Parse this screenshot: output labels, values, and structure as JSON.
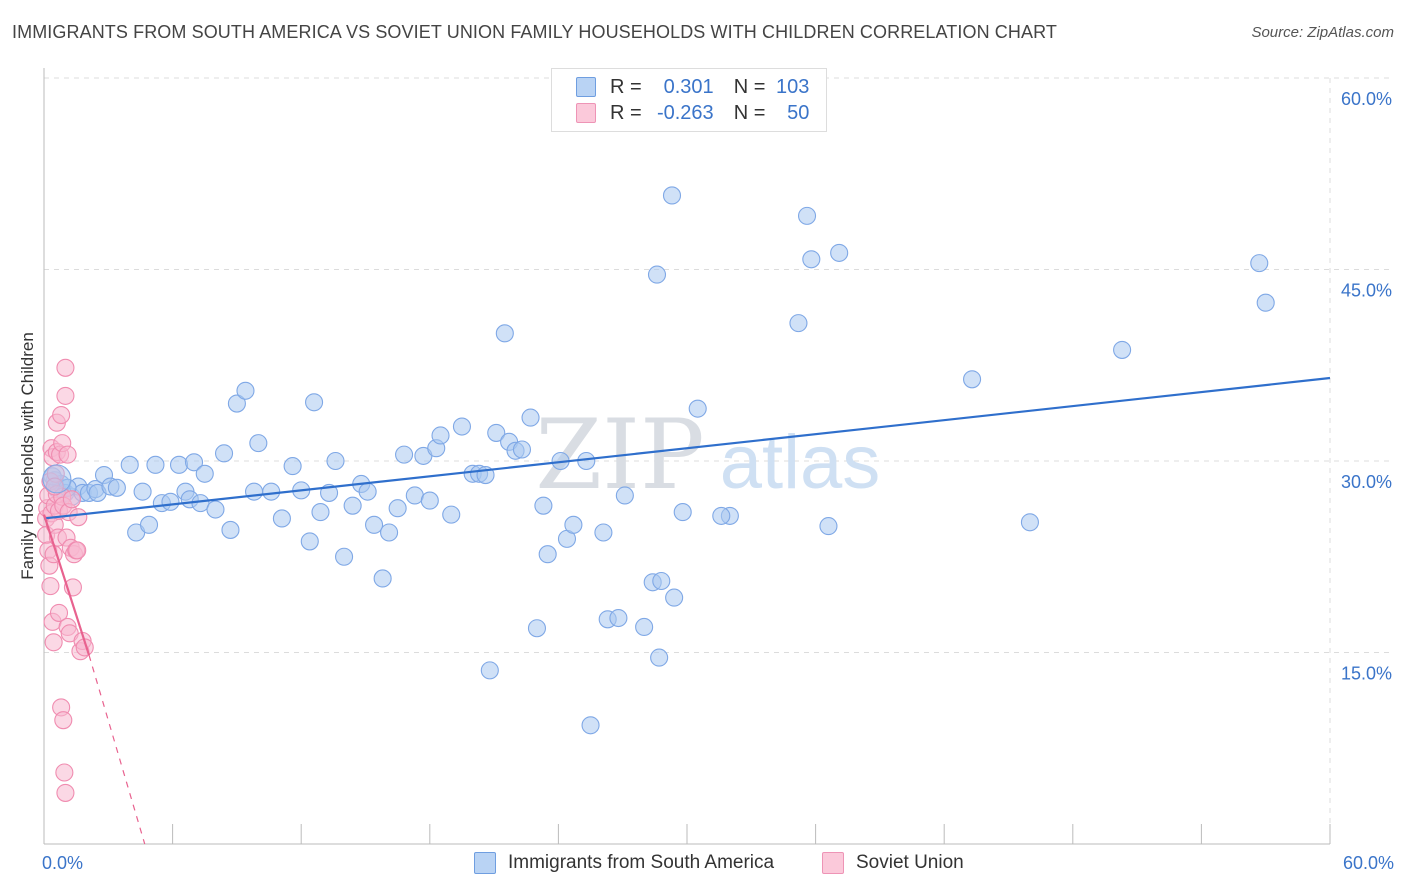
{
  "chart_data": {
    "type": "scatter",
    "title": "IMMIGRANTS FROM SOUTH AMERICA VS SOVIET UNION FAMILY HOUSEHOLDS WITH CHILDREN CORRELATION CHART",
    "source": "Source: ZipAtlas.com",
    "ylabel": "Family Households with Children",
    "xlim": [
      0,
      60
    ],
    "ylim": [
      0,
      60
    ],
    "x_tick_labels": {
      "left": "0.0%",
      "right": "60.0%"
    },
    "y_tick_labels": [
      "15.0%",
      "30.0%",
      "45.0%",
      "60.0%"
    ],
    "y_ticks": [
      15,
      30,
      45,
      60
    ],
    "watermark": {
      "zip": "ZIP",
      "atlas": "atlas"
    },
    "legend": {
      "rows": [
        {
          "r_label": "R =",
          "r_value": "0.301",
          "n_label": "N =",
          "n_value": "103"
        },
        {
          "r_label": "R =",
          "r_value": "-0.263",
          "n_label": "N =",
          "n_value": "50"
        }
      ]
    },
    "series": [
      {
        "name": "Immigrants from South America",
        "color": "#7fa8e6",
        "fill": "#aac8f0",
        "line_color": "#2f6fcc",
        "trend": {
          "x0": 0,
          "y0": 25.5,
          "x1": 60,
          "y1": 36.5
        },
        "points": [
          [
            0.5,
            28.5
          ],
          [
            0.6,
            27.8
          ],
          [
            0.8,
            28.2
          ],
          [
            1.0,
            27.5
          ],
          [
            1.3,
            27.2
          ],
          [
            1.6,
            28.0
          ],
          [
            1.8,
            27.5
          ],
          [
            2.1,
            27.5
          ],
          [
            2.4,
            27.8
          ],
          [
            2.5,
            27.5
          ],
          [
            2.8,
            28.9
          ],
          [
            3.1,
            28.0
          ],
          [
            3.4,
            27.9
          ],
          [
            4.0,
            29.7
          ],
          [
            4.3,
            24.4
          ],
          [
            4.6,
            27.6
          ],
          [
            4.9,
            25.0
          ],
          [
            5.2,
            29.7
          ],
          [
            5.5,
            26.7
          ],
          [
            5.9,
            26.8
          ],
          [
            6.3,
            29.7
          ],
          [
            6.6,
            27.6
          ],
          [
            6.8,
            27.0
          ],
          [
            7.0,
            29.9
          ],
          [
            7.3,
            26.7
          ],
          [
            7.5,
            29.0
          ],
          [
            8.0,
            26.2
          ],
          [
            8.4,
            30.6
          ],
          [
            8.7,
            24.6
          ],
          [
            9.0,
            34.5
          ],
          [
            9.4,
            35.5
          ],
          [
            9.8,
            27.6
          ],
          [
            10.0,
            31.4
          ],
          [
            10.6,
            27.6
          ],
          [
            11.1,
            25.5
          ],
          [
            11.6,
            29.6
          ],
          [
            12.0,
            27.7
          ],
          [
            12.4,
            23.7
          ],
          [
            12.6,
            34.6
          ],
          [
            12.9,
            26.0
          ],
          [
            13.3,
            27.5
          ],
          [
            13.6,
            30.0
          ],
          [
            14.0,
            22.5
          ],
          [
            14.4,
            26.5
          ],
          [
            14.8,
            28.2
          ],
          [
            15.1,
            27.6
          ],
          [
            15.4,
            25.0
          ],
          [
            15.8,
            20.8
          ],
          [
            16.1,
            24.4
          ],
          [
            16.5,
            26.3
          ],
          [
            16.8,
            30.5
          ],
          [
            17.3,
            27.3
          ],
          [
            17.7,
            30.4
          ],
          [
            18.0,
            26.9
          ],
          [
            18.3,
            31.0
          ],
          [
            18.5,
            32.0
          ],
          [
            19.0,
            25.8
          ],
          [
            19.5,
            32.7
          ],
          [
            20.0,
            29.0
          ],
          [
            20.3,
            29.0
          ],
          [
            20.6,
            28.9
          ],
          [
            21.1,
            32.2
          ],
          [
            21.5,
            40.0
          ],
          [
            21.7,
            31.5
          ],
          [
            22.0,
            30.8
          ],
          [
            22.3,
            30.9
          ],
          [
            22.7,
            33.4
          ],
          [
            23.0,
            16.9
          ],
          [
            23.3,
            26.5
          ],
          [
            23.5,
            22.7
          ],
          [
            24.1,
            30.0
          ],
          [
            24.4,
            23.9
          ],
          [
            24.7,
            25.0
          ],
          [
            25.3,
            30.0
          ],
          [
            25.5,
            9.3
          ],
          [
            26.1,
            24.4
          ],
          [
            26.3,
            17.6
          ],
          [
            26.8,
            17.7
          ],
          [
            27.1,
            27.3
          ],
          [
            28.0,
            17.0
          ],
          [
            28.4,
            20.5
          ],
          [
            28.6,
            44.6
          ],
          [
            28.7,
            14.6
          ],
          [
            29.3,
            50.8
          ],
          [
            29.4,
            19.3
          ],
          [
            29.8,
            26.0
          ],
          [
            30.5,
            34.1
          ],
          [
            32.0,
            25.7
          ],
          [
            35.2,
            40.8
          ],
          [
            35.6,
            49.2
          ],
          [
            35.8,
            45.8
          ],
          [
            36.6,
            24.9
          ],
          [
            37.1,
            46.3
          ],
          [
            43.3,
            36.4
          ],
          [
            46.0,
            25.2
          ],
          [
            50.3,
            38.7
          ],
          [
            56.7,
            45.5
          ],
          [
            57.0,
            42.4
          ],
          [
            0.4,
            28.8
          ],
          [
            1.1,
            27.9
          ],
          [
            20.8,
            13.6
          ],
          [
            28.8,
            20.6
          ],
          [
            31.6,
            25.7
          ]
        ]
      },
      {
        "name": "Soviet Union",
        "color": "#f08cb0",
        "fill": "#f7b8cf",
        "line_color": "#e8628f",
        "trend": {
          "x0": 0,
          "y0": 25.8,
          "x1": 2.1,
          "y1": 14.8
        },
        "trend_dashed": {
          "x0": 2.1,
          "y0": 14.8,
          "x1": 4.7,
          "y1": 0
        },
        "points": [
          [
            0.1,
            25.5
          ],
          [
            0.1,
            24.2
          ],
          [
            0.15,
            26.3
          ],
          [
            0.2,
            23.0
          ],
          [
            0.2,
            27.3
          ],
          [
            0.25,
            21.8
          ],
          [
            0.3,
            28.4
          ],
          [
            0.3,
            20.2
          ],
          [
            0.35,
            25.9
          ],
          [
            0.35,
            31.0
          ],
          [
            0.4,
            30.3
          ],
          [
            0.4,
            17.4
          ],
          [
            0.45,
            22.7
          ],
          [
            0.45,
            15.8
          ],
          [
            0.5,
            26.5
          ],
          [
            0.5,
            25.0
          ],
          [
            0.55,
            29.0
          ],
          [
            0.6,
            33.0
          ],
          [
            0.6,
            30.7
          ],
          [
            0.6,
            27.4
          ],
          [
            0.65,
            24.0
          ],
          [
            0.7,
            18.1
          ],
          [
            0.7,
            26.1
          ],
          [
            0.75,
            30.5
          ],
          [
            0.8,
            33.6
          ],
          [
            0.8,
            10.7
          ],
          [
            0.85,
            31.4
          ],
          [
            0.85,
            27.2
          ],
          [
            0.9,
            26.5
          ],
          [
            0.9,
            9.7
          ],
          [
            0.95,
            5.6
          ],
          [
            1.0,
            4.0
          ],
          [
            1.0,
            35.1
          ],
          [
            1.0,
            37.3
          ],
          [
            1.05,
            24.0
          ],
          [
            1.1,
            17.0
          ],
          [
            1.1,
            30.5
          ],
          [
            1.15,
            26.0
          ],
          [
            1.2,
            16.5
          ],
          [
            1.25,
            23.2
          ],
          [
            1.3,
            27.0
          ],
          [
            1.35,
            20.1
          ],
          [
            1.4,
            22.7
          ],
          [
            1.5,
            23.0
          ],
          [
            1.55,
            23.0
          ],
          [
            1.6,
            25.6
          ],
          [
            1.7,
            15.1
          ],
          [
            1.8,
            15.9
          ],
          [
            1.9,
            15.4
          ],
          [
            0.5,
            28.0
          ]
        ]
      }
    ]
  }
}
